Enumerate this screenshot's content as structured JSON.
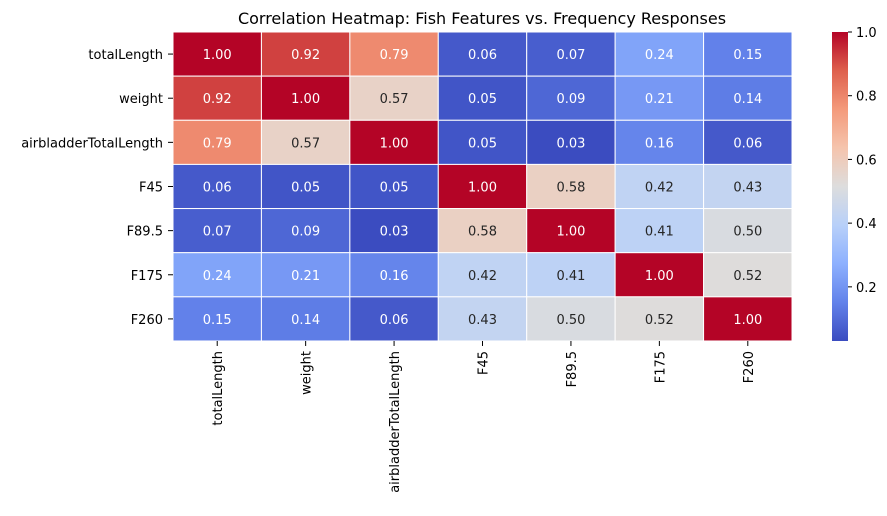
{
  "chart_data": {
    "type": "heatmap",
    "title": "Correlation Heatmap: Fish Features vs. Frequency Responses",
    "rows": [
      "totalLength",
      "weight",
      "airbladderTotalLength",
      "F45",
      "F89.5",
      "F175",
      "F260"
    ],
    "columns": [
      "totalLength",
      "weight",
      "airbladderTotalLength",
      "F45",
      "F89.5",
      "F175",
      "F260"
    ],
    "values": [
      [
        1.0,
        0.92,
        0.79,
        0.06,
        0.07,
        0.24,
        0.15
      ],
      [
        0.92,
        1.0,
        0.57,
        0.05,
        0.09,
        0.21,
        0.14
      ],
      [
        0.79,
        0.57,
        1.0,
        0.05,
        0.03,
        0.16,
        0.06
      ],
      [
        0.06,
        0.05,
        0.05,
        1.0,
        0.58,
        0.42,
        0.43
      ],
      [
        0.07,
        0.09,
        0.03,
        0.58,
        1.0,
        0.41,
        0.5
      ],
      [
        0.24,
        0.21,
        0.16,
        0.42,
        0.41,
        1.0,
        0.52
      ],
      [
        0.15,
        0.14,
        0.06,
        0.43,
        0.5,
        0.52,
        1.0
      ]
    ],
    "annotation_format": "2 decimals",
    "colormap": "coolwarm",
    "colorbar": {
      "min": 0.03,
      "max": 1.0,
      "ticks": [
        0.2,
        0.4,
        0.6,
        0.8,
        1.0
      ],
      "tick_labels": [
        "0.2",
        "0.4",
        "0.6",
        "0.8",
        "1.0"
      ]
    },
    "cell_border_color": "#ffffff"
  }
}
